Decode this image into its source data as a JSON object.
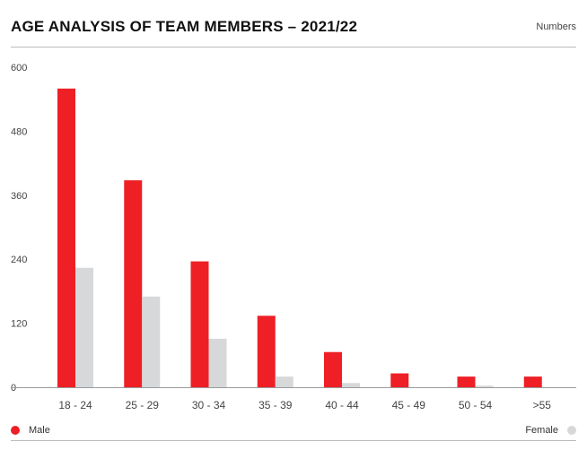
{
  "header": {
    "title": "AGE ANALYSIS OF TEAM MEMBERS – 2021/22",
    "unit_label": "Numbers"
  },
  "colors": {
    "male": "#ee2026",
    "female": "#d6d8da",
    "grid": "#e6e6e6",
    "axis": "#9a9a9a",
    "text": "#444444"
  },
  "chart_data": {
    "type": "bar",
    "title": "AGE ANALYSIS OF TEAM MEMBERS – 2021/22",
    "ylabel": "Numbers",
    "xlabel": "",
    "categories": [
      "18 - 24",
      "25 - 29",
      "30 - 34",
      "35 - 39",
      "40 - 44",
      "45 - 49",
      "50 - 54",
      ">55"
    ],
    "series": [
      {
        "name": "Male",
        "values": [
          560,
          388,
          236,
          134,
          66,
          26,
          20,
          20
        ]
      },
      {
        "name": "Female",
        "values": [
          224,
          170,
          91,
          20,
          8,
          0,
          3,
          0
        ]
      }
    ],
    "ylim": [
      0,
      600
    ],
    "yticks": [
      "0",
      "120",
      "240",
      "360",
      "480",
      "600"
    ],
    "grid": false,
    "legend": "bottom"
  }
}
